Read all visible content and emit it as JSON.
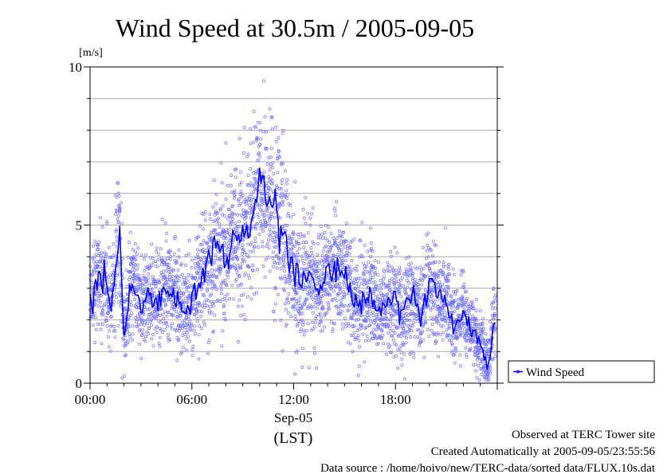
{
  "chart_data": {
    "type": "scatter",
    "title": "Wind Speed at 30.5m / 2005-09-05",
    "ylabel": "[m/s]",
    "ylim": [
      0,
      10
    ],
    "yticks": [
      0,
      5,
      10
    ],
    "xlim_hours": [
      0,
      24
    ],
    "xticks": [
      "00:00",
      "06:00",
      "12:00",
      "18:00"
    ],
    "date_label": "Sep-05",
    "timezone_label": "(LST)",
    "grid": true,
    "legend_position": "bottom-right, outside plot",
    "series": [
      {
        "name": "Wind Speed",
        "color": "#0000ff",
        "x_hours": [
          0,
          0.5,
          1,
          1.25,
          1.5,
          1.75,
          2,
          2.5,
          3,
          3.5,
          4,
          4.5,
          5,
          5.5,
          6,
          6.5,
          7,
          7.5,
          8,
          8.5,
          9,
          9.5,
          10,
          10.5,
          11,
          11.5,
          12,
          12.5,
          13,
          13.5,
          14,
          14.5,
          15,
          15.5,
          16,
          16.5,
          17,
          17.5,
          18,
          18.5,
          19,
          19.5,
          20,
          20.5,
          21,
          21.5,
          22,
          22.5,
          23,
          23.5,
          23.9
        ],
        "mean_values": [
          2.6,
          3.4,
          3.2,
          2.3,
          3.8,
          4.8,
          1.5,
          3.4,
          2.3,
          2.8,
          2.6,
          3.0,
          2.8,
          2.3,
          2.6,
          3.2,
          3.8,
          4.5,
          4.0,
          4.6,
          4.3,
          5.2,
          6.7,
          6.0,
          5.3,
          4.6,
          3.4,
          3.1,
          3.3,
          3.1,
          3.6,
          3.6,
          3.5,
          2.6,
          2.5,
          2.8,
          2.2,
          2.5,
          2.6,
          2.4,
          2.7,
          2.1,
          3.2,
          2.8,
          2.4,
          1.8,
          2.2,
          1.6,
          1.2,
          0.6,
          2.3
        ],
        "spread_values": [
          0.6,
          0.9,
          0.8,
          0.7,
          1.0,
          1.2,
          0.8,
          0.7,
          0.7,
          0.7,
          0.7,
          0.8,
          0.8,
          0.7,
          0.8,
          0.9,
          1.0,
          1.1,
          1.1,
          1.2,
          1.2,
          1.3,
          1.4,
          1.4,
          1.3,
          1.2,
          1.1,
          1.0,
          0.9,
          0.9,
          0.9,
          0.9,
          0.9,
          0.8,
          0.8,
          0.8,
          0.7,
          0.7,
          0.8,
          0.8,
          0.8,
          0.7,
          0.8,
          0.8,
          0.7,
          0.6,
          0.6,
          0.6,
          0.5,
          0.5,
          0.6
        ]
      }
    ]
  },
  "footer": {
    "line1": "Observed at TERC Tower site",
    "line2": "Created Automatically at 2005-09-05/23:55:56",
    "line3": "Data source : /home/hoivo/new/TERC-data/sorted  data/FLUX.10s.dat"
  }
}
